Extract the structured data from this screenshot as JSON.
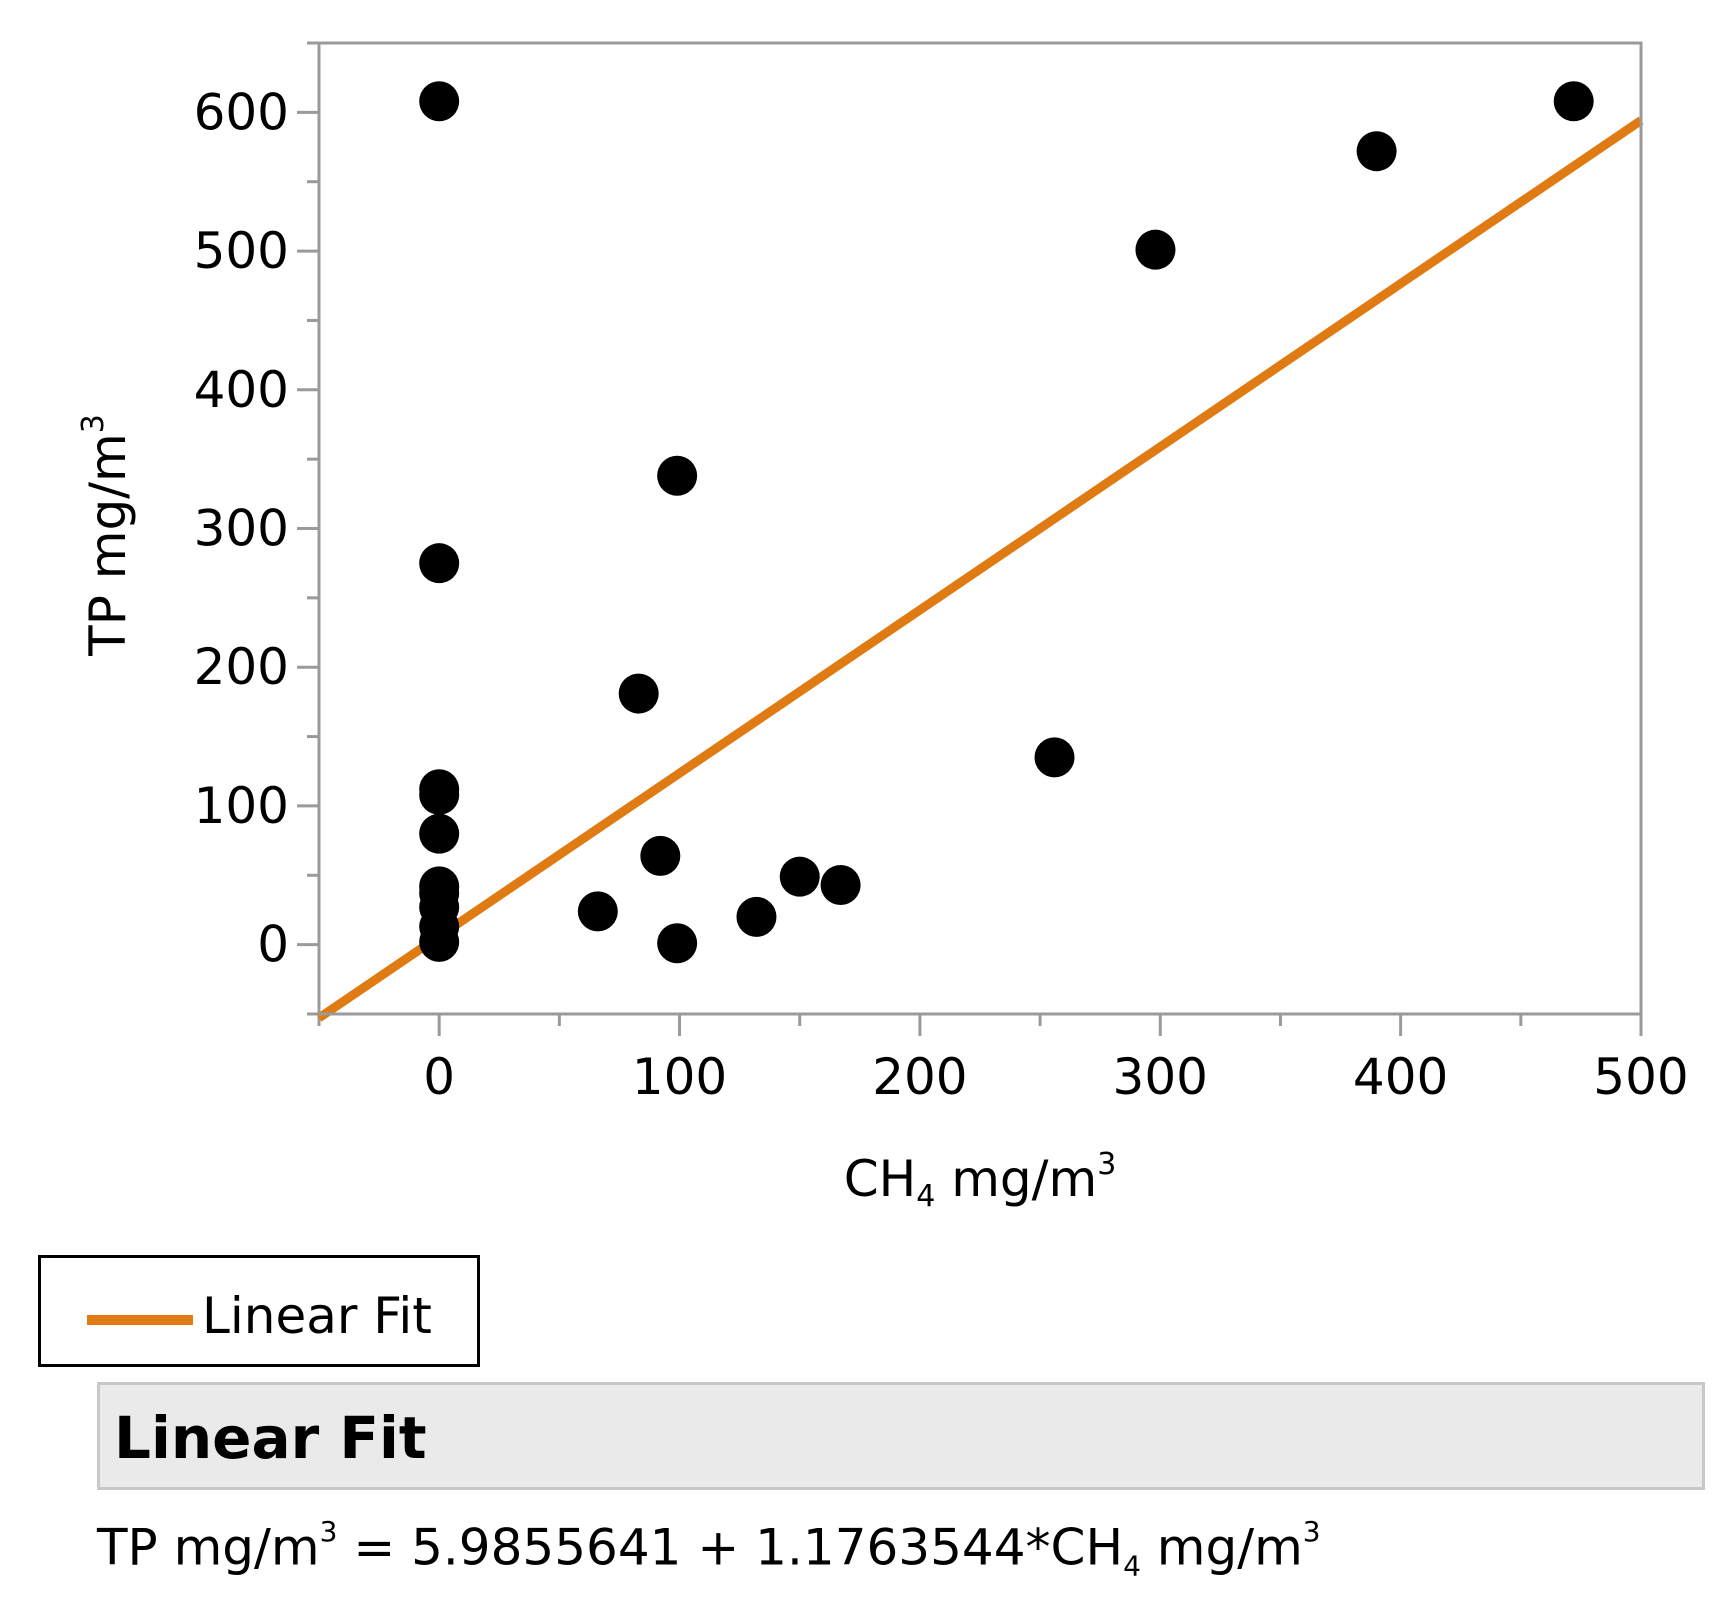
{
  "chart_data": {
    "type": "scatter",
    "title": "",
    "xlabel": {
      "main": "CH",
      "sub": "4",
      "unit": " mg/m",
      "sup": "3"
    },
    "ylabel": {
      "main": "TP mg/m",
      "sup": "3"
    },
    "xlim": [
      -50,
      500
    ],
    "ylim": [
      -50,
      650
    ],
    "x_ticks": [
      0,
      100,
      200,
      300,
      400,
      500
    ],
    "x_minor_ticks": [
      -50,
      50,
      150,
      250,
      350,
      450
    ],
    "y_ticks": [
      0,
      100,
      200,
      300,
      400,
      500,
      600
    ],
    "y_minor_ticks": [
      -50,
      50,
      150,
      250,
      350,
      450,
      550,
      650
    ],
    "grid": false,
    "points": {
      "name": "Observations",
      "x": [
        0,
        0,
        0,
        0,
        0,
        0,
        0,
        0,
        0,
        0,
        66,
        83,
        92,
        99,
        99,
        132,
        150,
        167,
        256,
        298,
        390,
        472
      ],
      "y": [
        608,
        275,
        112,
        108,
        80,
        42,
        37,
        27,
        13,
        2,
        24,
        181,
        64,
        338,
        1,
        20,
        49,
        43,
        135,
        501,
        572,
        608
      ]
    },
    "fit": {
      "name": "Linear Fit",
      "intercept": 5.9855641,
      "slope": 1.1763544,
      "x_range": [
        -50,
        500
      ],
      "color": "#e07b13"
    },
    "marker_color": "#000000"
  },
  "legend": {
    "label": "Linear Fit"
  },
  "fit_report": {
    "title": "Linear Fit",
    "equation": {
      "lhs": "TP mg/m",
      "lhs_sup": "3",
      "middle": " = 5.9855641 + 1.1763544*CH",
      "sub": "4",
      "unit": " mg/m",
      "unit_sup": "3"
    }
  }
}
